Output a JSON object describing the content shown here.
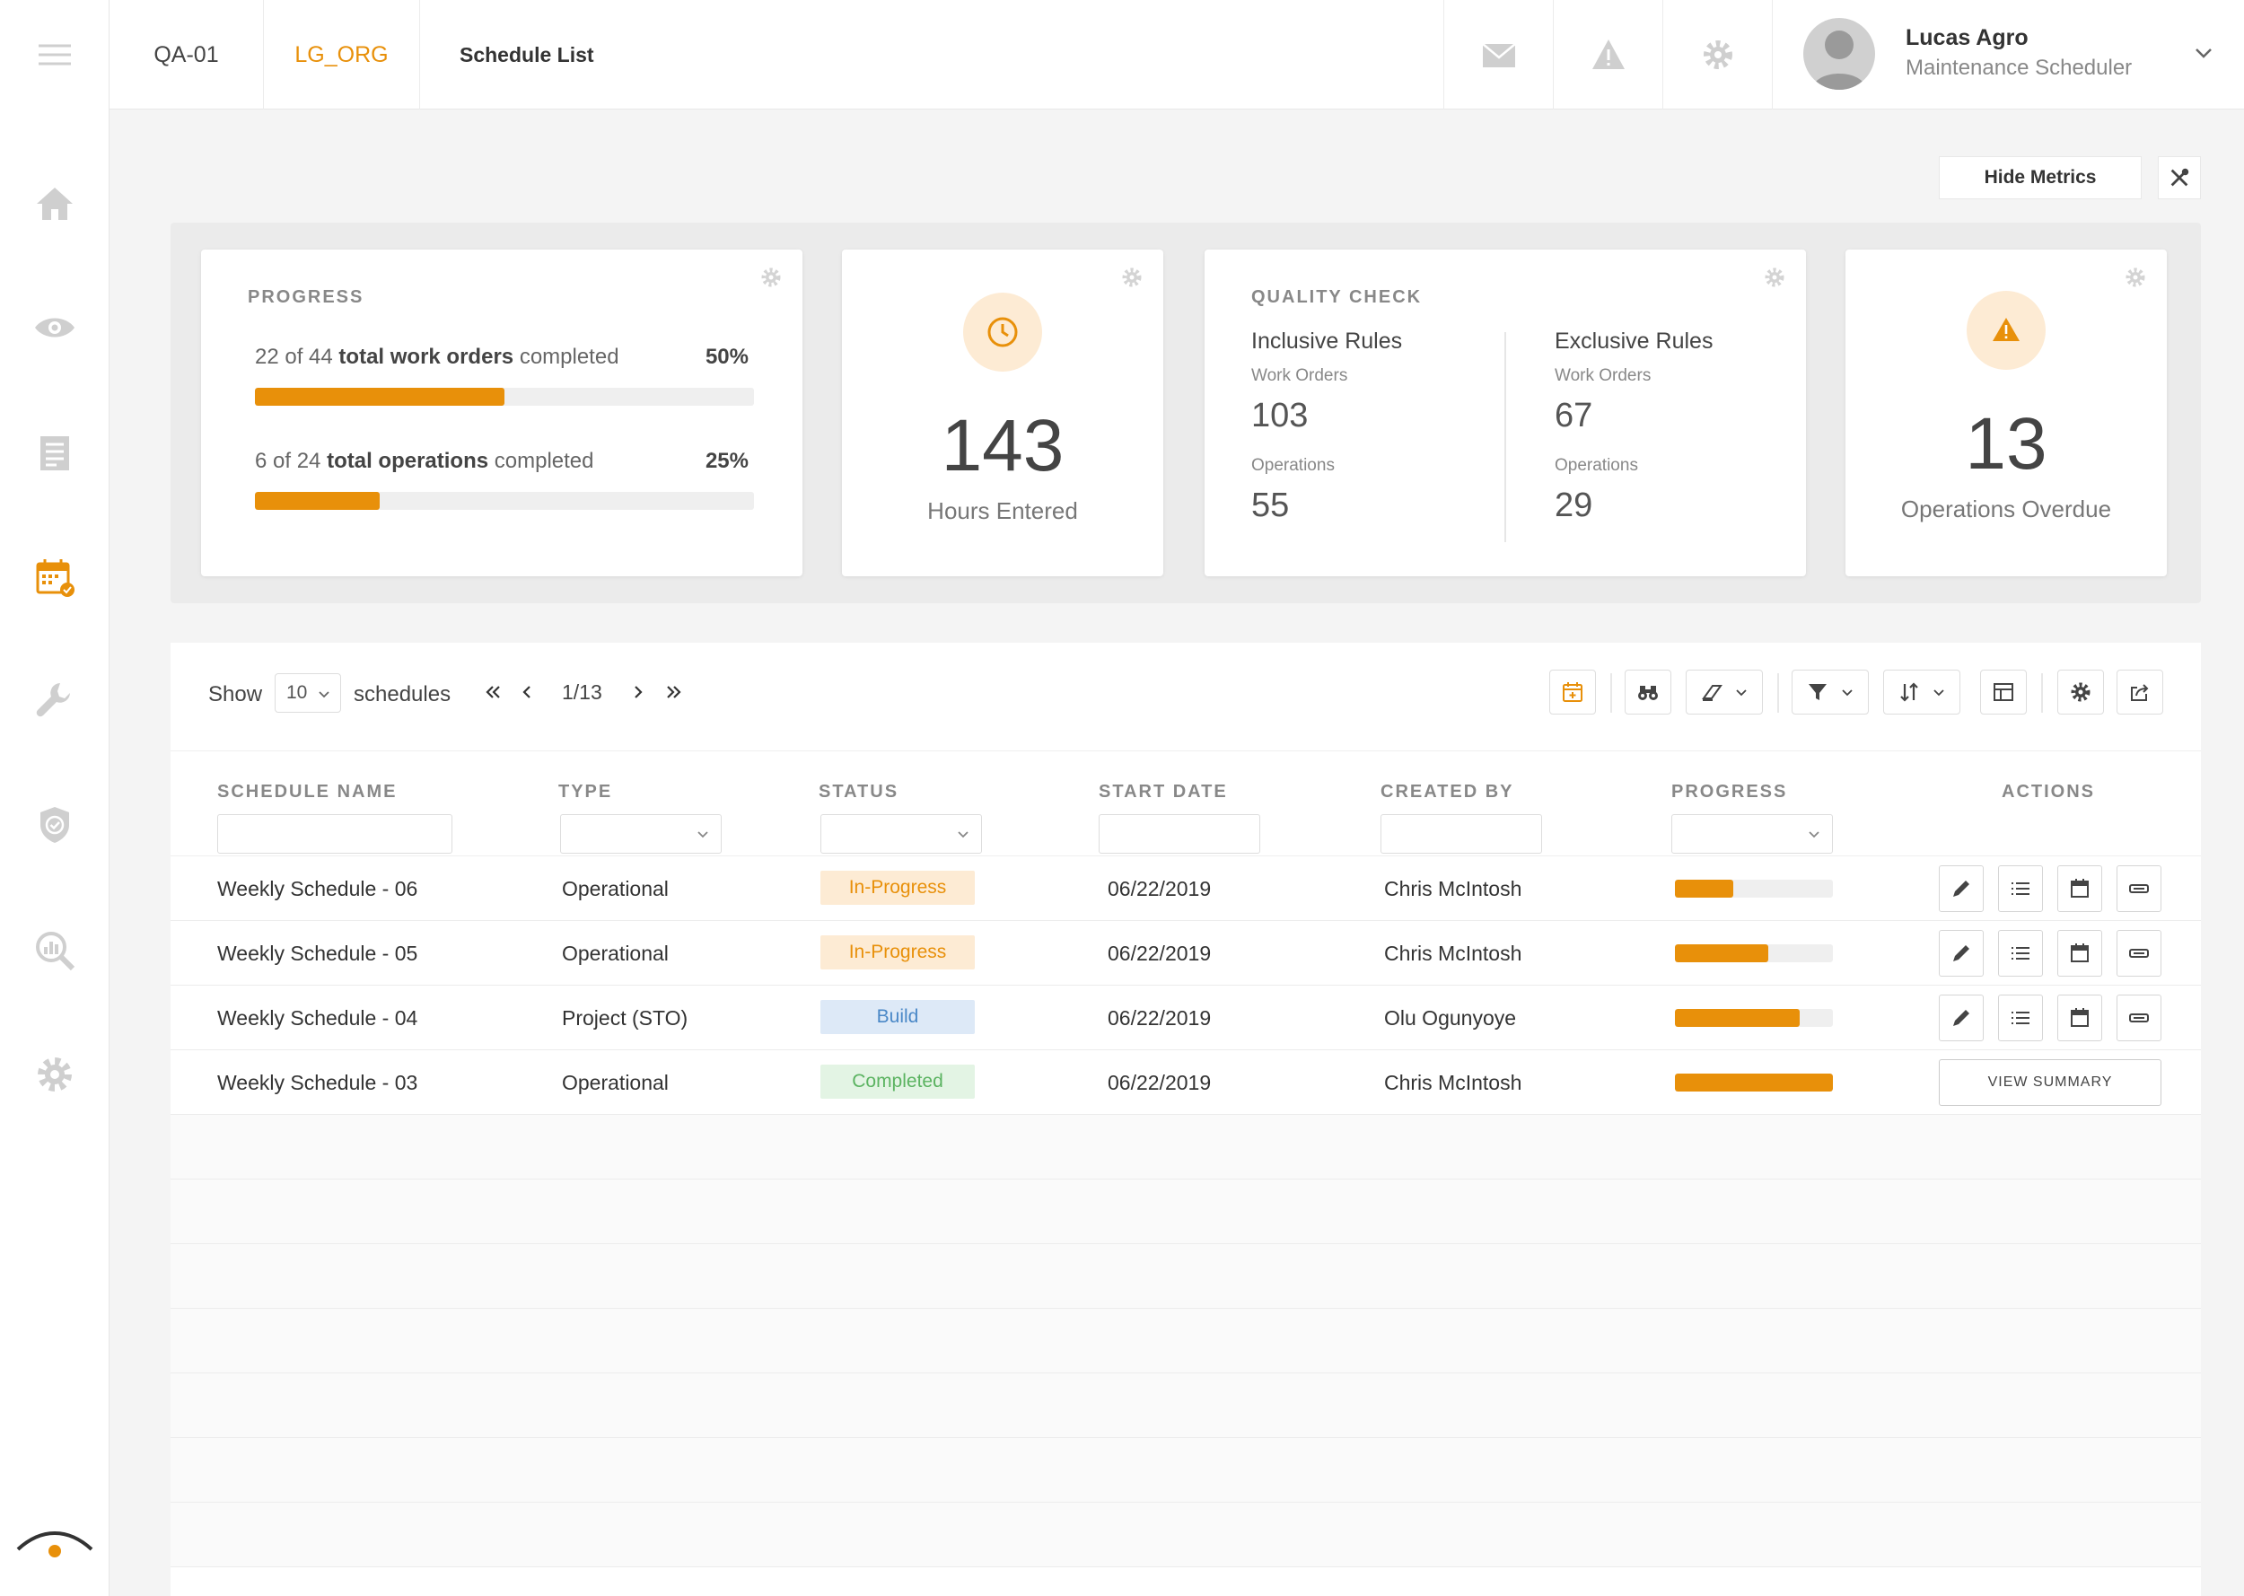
{
  "colors": {
    "accent": "#e8900a",
    "sidebar_icon": "#cfcfcf"
  },
  "sidebar": {
    "items": [
      {
        "name": "home",
        "icon": "home-icon"
      },
      {
        "name": "view",
        "icon": "eye-icon"
      },
      {
        "name": "list",
        "icon": "document-list-icon"
      },
      {
        "name": "schedule",
        "icon": "calendar-check-icon",
        "active": true
      },
      {
        "name": "tools",
        "icon": "wrench-icon"
      },
      {
        "name": "security",
        "icon": "shield-check-icon"
      },
      {
        "name": "analytics",
        "icon": "search-chart-icon"
      },
      {
        "name": "settings",
        "icon": "gear-icon"
      }
    ]
  },
  "header": {
    "site": "QA-01",
    "org": "LG_ORG",
    "title": "Schedule List",
    "user": {
      "name": "Lucas Agro",
      "role": "Maintenance Scheduler"
    }
  },
  "metrics_actions": {
    "hide_label": "Hide Metrics"
  },
  "metrics": {
    "progress": {
      "label": "PROGRESS",
      "work_orders": {
        "prefix": "22 of 44",
        "bold": "total work orders",
        "suffix": "completed",
        "pct_label": "50%",
        "pct": 50
      },
      "operations": {
        "prefix": "6 of 24",
        "bold": "total operations",
        "suffix": "completed",
        "pct_label": "25%",
        "pct": 25
      }
    },
    "hours": {
      "value": "143",
      "caption": "Hours Entered"
    },
    "quality": {
      "label": "QUALITY CHECK",
      "inclusive": {
        "title": "Inclusive Rules",
        "wo_label": "Work Orders",
        "wo_value": "103",
        "ops_label": "Operations",
        "ops_value": "55"
      },
      "exclusive": {
        "title": "Exclusive Rules",
        "wo_label": "Work Orders",
        "wo_value": "67",
        "ops_label": "Operations",
        "ops_value": "29"
      }
    },
    "overdue": {
      "value": "13",
      "caption": "Operations Overdue"
    }
  },
  "table": {
    "show_label": "Show",
    "page_size": "10",
    "schedules_label": "schedules",
    "page_info": "1/13",
    "columns": [
      "SCHEDULE NAME",
      "TYPE",
      "STATUS",
      "START DATE",
      "CREATED BY",
      "PROGRESS",
      "ACTIONS"
    ],
    "rows": [
      {
        "name": "Weekly Schedule - 06",
        "type": "Operational",
        "status": "In-Progress",
        "status_kind": "progress",
        "start": "06/22/2019",
        "created_by": "Chris McIntosh",
        "progress": 37
      },
      {
        "name": "Weekly Schedule - 05",
        "type": "Operational",
        "status": "In-Progress",
        "status_kind": "progress",
        "start": "06/22/2019",
        "created_by": "Chris McIntosh",
        "progress": 59
      },
      {
        "name": "Weekly Schedule - 04",
        "type": "Project (STO)",
        "status": "Build",
        "status_kind": "build",
        "start": "06/22/2019",
        "created_by": "Olu Ogunyoye",
        "progress": 79
      },
      {
        "name": "Weekly Schedule - 03",
        "type": "Operational",
        "status": "Completed",
        "status_kind": "completed",
        "start": "06/22/2019",
        "created_by": "Chris McIntosh",
        "progress": 100,
        "summary_label": "VIEW SUMMARY"
      }
    ]
  }
}
